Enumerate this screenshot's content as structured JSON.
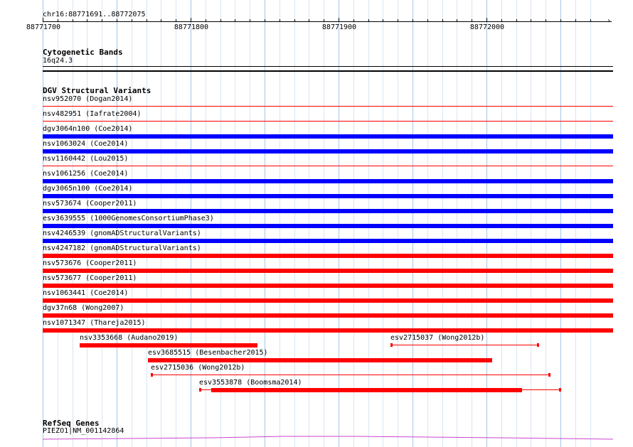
{
  "ruler": {
    "region": "chr16:88771691..88772075",
    "labels": [
      "88771700",
      "88771800",
      "88771900",
      "88772000"
    ]
  },
  "cytoband": {
    "title": "Cytogenetic Bands",
    "band": "16q24.3"
  },
  "dgv": {
    "title": "DGV Structural Variants",
    "full_rows": [
      {
        "label": "nsv952070 (Dogan2014)",
        "type": "loss-thin"
      },
      {
        "label": "nsv482951 (Iafrate2004)",
        "type": "loss-thin"
      },
      {
        "label": "dgv3064n100 (Coe2014)",
        "type": "gain"
      },
      {
        "label": "nsv1063024 (Coe2014)",
        "type": "gain"
      },
      {
        "label": "nsv1160442 (Lou2015)",
        "type": "loss-thin"
      },
      {
        "label": "nsv1061256 (Coe2014)",
        "type": "gain"
      },
      {
        "label": "dgv3065n100 (Coe2014)",
        "type": "gain"
      },
      {
        "label": "nsv573674 (Cooper2011)",
        "type": "gain"
      },
      {
        "label": "esv3639555 (1000GenomesConsortiumPhase3)",
        "type": "gain"
      },
      {
        "label": "nsv4246539 (gnomADStructuralVariants)",
        "type": "gain"
      },
      {
        "label": "nsv4247182 (gnomADStructuralVariants)",
        "type": "loss"
      },
      {
        "label": "nsv573676 (Cooper2011)",
        "type": "loss"
      },
      {
        "label": "nsv573677 (Cooper2011)",
        "type": "loss"
      },
      {
        "label": "nsv1063441 (Coe2014)",
        "type": "loss"
      },
      {
        "label": "dgv37n68 (Wong2007)",
        "type": "loss"
      },
      {
        "label": "nsv1071347 (Thareja2015)",
        "type": "loss"
      }
    ],
    "partial_rows": [
      {
        "label": "nsv3353668 (Audano2019)",
        "start": 88771725,
        "end": 88771845,
        "thick_start": 88771725,
        "thick_end": 88771845
      },
      {
        "label": "esv2715037 (Wong2012b)",
        "start": 88771935,
        "end": 88772035,
        "thick_start": null,
        "thick_end": null
      },
      {
        "label": "esv3685515 (Besenbacher2015)",
        "start": 88771771,
        "end": 88772004,
        "thick_start": 88771771,
        "thick_end": 88772004
      },
      {
        "label": "esv2715036 (Wong2012b)",
        "start": 88771773,
        "end": 88772043,
        "thick_start": null,
        "thick_end": null
      },
      {
        "label": "esv3553878 (Boomsma2014)",
        "start": 88771806,
        "end": 88772050,
        "thick_start": 88771814,
        "thick_end": 88772024
      }
    ]
  },
  "refseq": {
    "title": "RefSeq Genes",
    "gene": "PIEZO1|NM_001142864"
  },
  "colors": {
    "gain": "#0000ff",
    "loss": "#ff0000",
    "gridline_major": "#a6c8e8",
    "gridline_minor": "#d7e6f3",
    "gene": "#cc44cc"
  }
}
